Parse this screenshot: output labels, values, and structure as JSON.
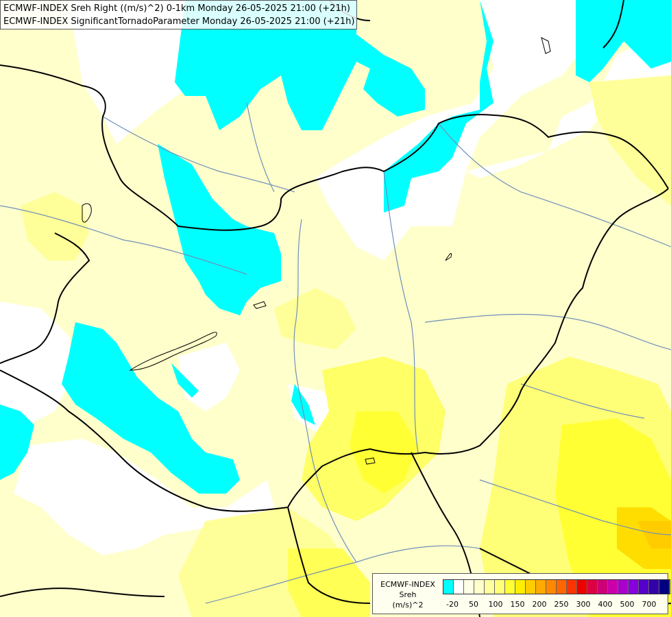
{
  "header": {
    "line1": "ECMWF-INDEX Sreh Right ((m/s)^2) 0-1km Monday 26-05-2025 21:00 (+21h)",
    "line2": "ECMWF-INDEX SignificantTornadoParameter Monday 26-05-2025 21:00 (+21h)"
  },
  "legend": {
    "title_line1": "ECMWF-INDEX",
    "title_line2": "Sreh",
    "title_line3": "(m/s)^2",
    "colors": [
      "#00ffff",
      "#ffffff",
      "#ffffe6",
      "#ffffcc",
      "#ffffa0",
      "#ffff7a",
      "#ffff33",
      "#ffee00",
      "#ffcc00",
      "#ffaa00",
      "#ff8800",
      "#ff6600",
      "#ff3300",
      "#ee0000",
      "#dd0044",
      "#cc0077",
      "#cc00aa",
      "#aa00cc",
      "#8800dd",
      "#5500cc",
      "#3300aa",
      "#000080"
    ],
    "tick_labels": [
      "-20",
      "50",
      "100",
      "150",
      "200",
      "250",
      "300",
      "400",
      "500",
      "700"
    ]
  }
}
